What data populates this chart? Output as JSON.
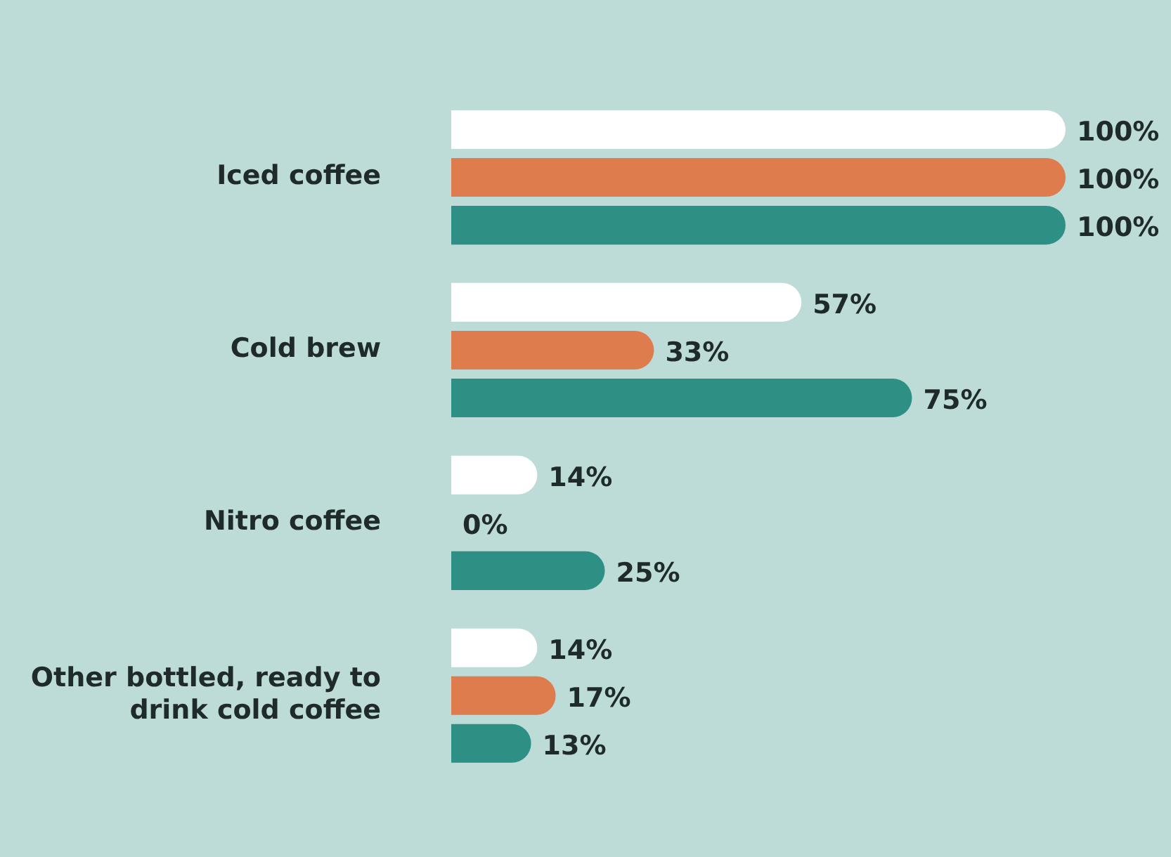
{
  "chart_data": {
    "type": "bar",
    "orientation": "horizontal",
    "categories": [
      "Iced coffee",
      "Cold brew",
      "Nitro coffee",
      "Other bottled, ready to drink cold coffee"
    ],
    "series": [
      {
        "color": "#ffffff",
        "values": [
          100,
          57,
          14,
          14
        ],
        "value_labels": [
          "100%",
          "57%",
          "14%",
          "14%"
        ]
      },
      {
        "color": "#df7c4d",
        "values": [
          100,
          33,
          0,
          17
        ],
        "value_labels": [
          "100%",
          "33%",
          "0%",
          "17%"
        ]
      },
      {
        "color": "#2e9085",
        "values": [
          100,
          75,
          25,
          13
        ],
        "value_labels": [
          "100%",
          "75%",
          "25%",
          "13%"
        ]
      }
    ],
    "xlim": [
      0,
      100
    ],
    "tick_labels": "y",
    "legend": false
  }
}
